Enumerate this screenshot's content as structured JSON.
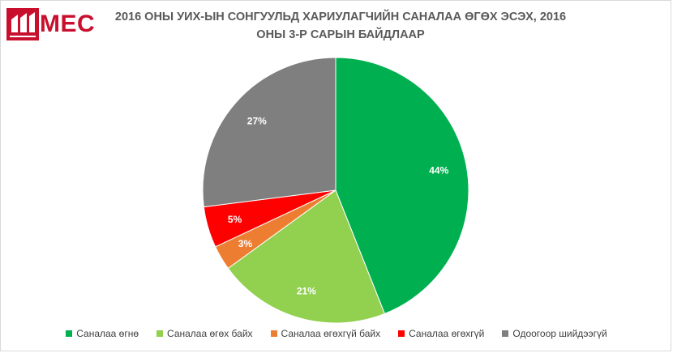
{
  "logo": {
    "text": "MEC"
  },
  "chart_data": {
    "type": "pie",
    "title": "2016 ОНЫ УИХ-ЫН СОНГУУЛЬД ХАРИУЛАГЧИЙН САНАЛАА ӨГӨХ ЭСЭХ, 2016 ОНЫ 3-Р САРЫН БАЙДЛААР",
    "legend_position": "bottom",
    "slices": [
      {
        "label": "Саналаа өгнө",
        "value": 44,
        "display": "44%",
        "color": "#00b050"
      },
      {
        "label": "Саналаа өгөх байх",
        "value": 21,
        "display": "21%",
        "color": "#92d050"
      },
      {
        "label": "Саналаа өгөхгүй байх",
        "value": 3,
        "display": "3%",
        "color": "#ed7d31"
      },
      {
        "label": "Саналаа өгөхгүй",
        "value": 5,
        "display": "5%",
        "color": "#ff0000"
      },
      {
        "label": "Одоогоор шийдээгүй",
        "value": 27,
        "display": "27%",
        "color": "#7f7f7f"
      }
    ]
  }
}
